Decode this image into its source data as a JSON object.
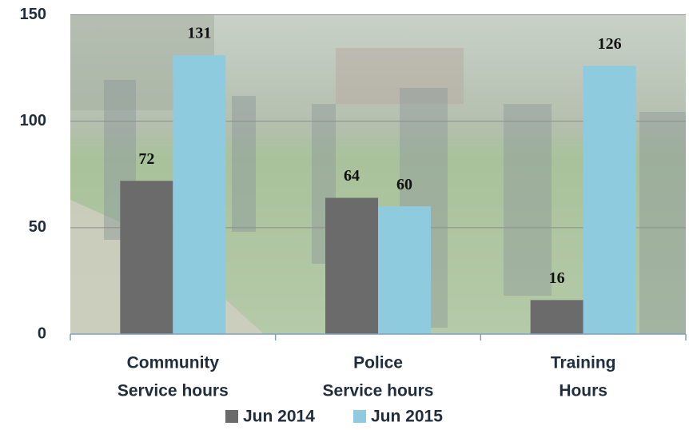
{
  "chart_data": {
    "type": "bar",
    "categories": [
      [
        "Community",
        "Service hours"
      ],
      [
        "Police",
        "Service hours"
      ],
      [
        "Training",
        "Hours"
      ]
    ],
    "series": [
      {
        "name": "Jun 2014",
        "color": "#6b6b6b",
        "values": [
          72,
          64,
          16
        ]
      },
      {
        "name": "Jun 2015",
        "color": "#8fcbde",
        "values": [
          131,
          60,
          126
        ]
      }
    ],
    "ylim": [
      0,
      150
    ],
    "yticks": [
      0,
      50,
      100,
      150
    ],
    "grid": true,
    "legend": "bottom"
  }
}
